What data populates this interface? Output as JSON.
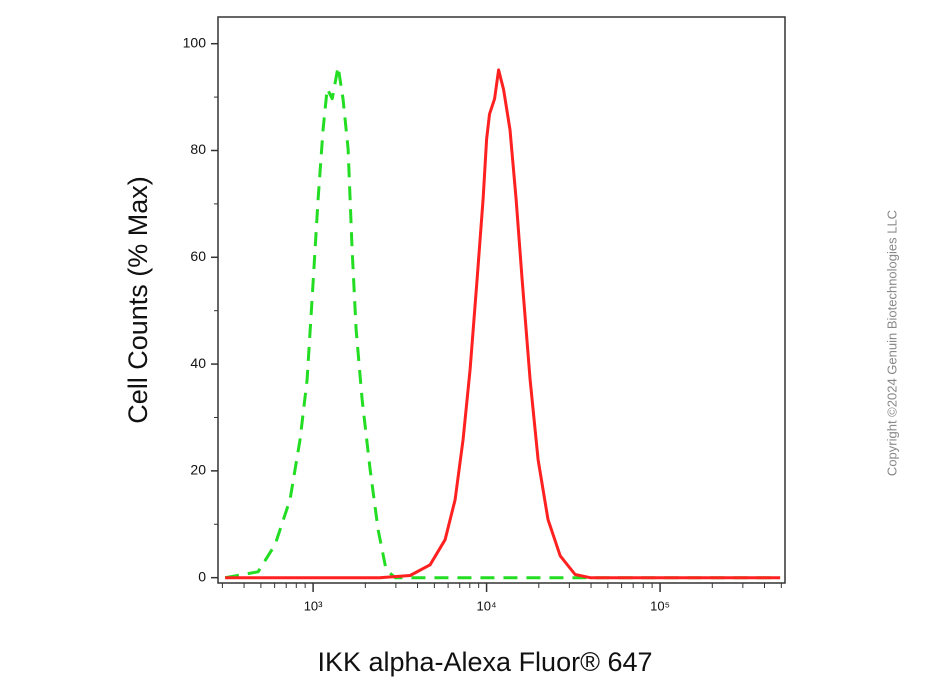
{
  "chart_data": {
    "type": "line",
    "x_label": "IKK alpha-Alexa Fluor® 647",
    "y_label": "Cell Counts (% Max)",
    "copyright": "Copyright ©2024 Genuin Biotechnologies LLC",
    "xscale": "log",
    "xlim": [
      283,
      525000
    ],
    "ylim": [
      -1,
      105
    ],
    "xticks": [
      {
        "value": 1000,
        "label": "10³"
      },
      {
        "value": 10000,
        "label": "10⁴"
      },
      {
        "value": 100000,
        "label": "10⁵"
      }
    ],
    "xminorticks": [
      300,
      400,
      500,
      600,
      700,
      800,
      900,
      2000,
      3000,
      4000,
      5000,
      6000,
      7000,
      8000,
      9000,
      20000,
      30000,
      40000,
      50000,
      60000,
      70000,
      80000,
      90000,
      200000,
      300000,
      400000,
      500000
    ],
    "yticks": [
      0,
      20,
      40,
      60,
      80,
      100
    ],
    "yminorticks": [
      10,
      30,
      50,
      70,
      90
    ],
    "series": [
      {
        "color": "#22dd22",
        "dash": true,
        "x": [
          311,
          482,
          604,
          736,
          841,
          923,
          987,
          1069,
          1142,
          1205,
          1288,
          1394,
          1488,
          1591,
          1679,
          1770,
          1915,
          2131,
          2370,
          2635,
          2972,
          6166,
          26550,
          492000
        ],
        "values": [
          0,
          1.1,
          6.2,
          14.6,
          25.9,
          37.1,
          52.2,
          70.9,
          84,
          91.6,
          89.7,
          95.7,
          89.7,
          80.3,
          61.5,
          46.5,
          33.4,
          20.3,
          9,
          1.5,
          0,
          0,
          0,
          0
        ]
      },
      {
        "color": "#ff2020",
        "dash": false,
        "x": [
          311,
          2432,
          3622,
          4723,
          5764,
          6580,
          7325,
          8036,
          8818,
          9550,
          10000,
          10400,
          11120,
          11730,
          12530,
          13650,
          14790,
          16030,
          17820,
          19820,
          22600,
          26550,
          32360,
          39540,
          492000
        ],
        "values": [
          0,
          0,
          0.4,
          2.4,
          7.1,
          14.6,
          25.9,
          39,
          55.9,
          70.9,
          82.1,
          86.8,
          89.7,
          95.1,
          91.4,
          83.9,
          70.9,
          55.9,
          37.1,
          22.1,
          10.9,
          4.1,
          0.6,
          0,
          0
        ]
      }
    ]
  }
}
